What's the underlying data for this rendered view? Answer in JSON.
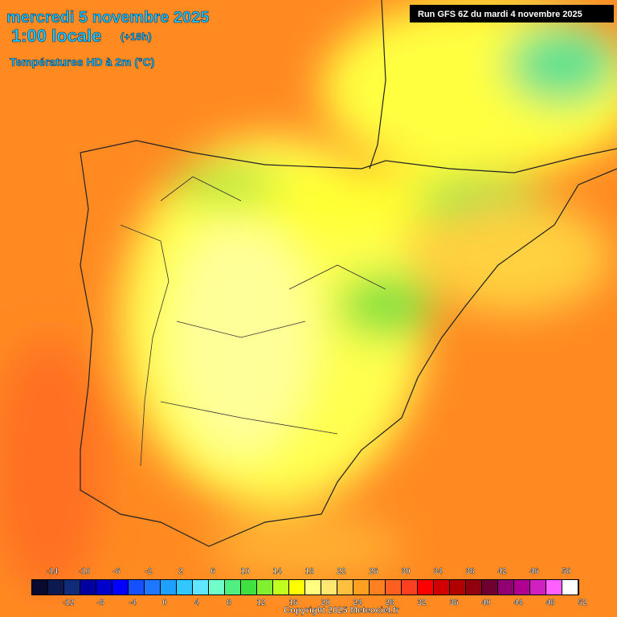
{
  "header": {
    "title_date": "mercredi 5 novembre 2025",
    "title_time": "1:00 locale",
    "lead": "(+18h)",
    "parameter": "Températures HD à 2m (°C)",
    "run": "Run GFS 6Z du mardi 4 novembre 2025"
  },
  "legend": {
    "top_labels": [
      -14,
      -10,
      -6,
      -2,
      2,
      6,
      10,
      14,
      18,
      22,
      26,
      30,
      34,
      38,
      42,
      46,
      50
    ],
    "bottom_labels": [
      -12,
      -8,
      -4,
      0,
      4,
      8,
      12,
      16,
      20,
      24,
      28,
      32,
      36,
      40,
      44,
      48,
      52
    ],
    "colors": [
      "#0a0a30",
      "#0c1a50",
      "#102c78",
      "#0000a0",
      "#0000cc",
      "#0000ff",
      "#1450ff",
      "#1e78ff",
      "#1ea0ff",
      "#30c8ff",
      "#60e6ff",
      "#70ffc8",
      "#50f080",
      "#40e040",
      "#80f030",
      "#c0ff20",
      "#ffff00",
      "#ffff80",
      "#ffe870",
      "#ffc040",
      "#ffa020",
      "#ff8020",
      "#ff6020",
      "#ff4020",
      "#ff0000",
      "#d00000",
      "#b00000",
      "#900010",
      "#700030",
      "#900070",
      "#b00090",
      "#d020c0",
      "#ff60ff",
      "#ffffff"
    ]
  },
  "footer": {
    "copyright": "Copyright 2025 Meteociel.fr"
  }
}
